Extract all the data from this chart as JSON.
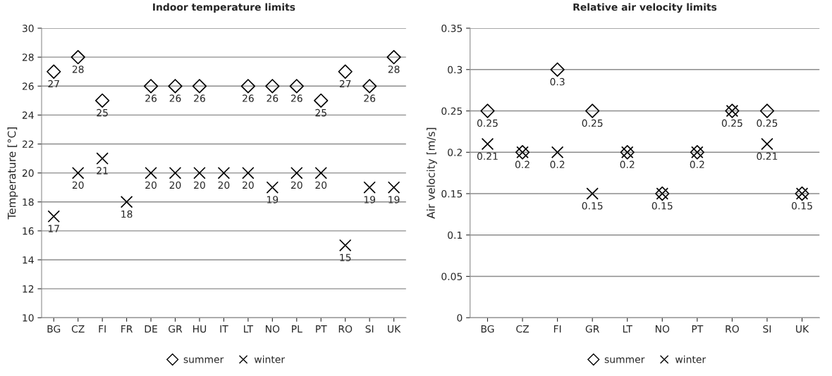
{
  "chart_data": [
    {
      "type": "scatter",
      "title": "Indoor temperature limits",
      "ylabel": "Temperature [°C]",
      "categories": [
        "BG",
        "CZ",
        "FI",
        "FR",
        "DE",
        "GR",
        "HU",
        "IT",
        "LT",
        "NO",
        "PL",
        "PT",
        "RO",
        "SI",
        "UK"
      ],
      "series": [
        {
          "name": "summer",
          "color": "#000000",
          "marker": "diamond",
          "values": [
            27,
            28,
            25,
            null,
            26,
            26,
            26,
            null,
            26,
            26,
            26,
            25,
            27,
            26,
            28
          ]
        },
        {
          "name": "winter",
          "color": "#000000",
          "marker": "cross",
          "values": [
            17,
            20,
            21,
            18,
            20,
            20,
            20,
            20,
            20,
            19,
            20,
            20,
            15,
            19,
            19
          ]
        }
      ],
      "ylim": [
        10,
        30
      ],
      "yticks": [
        10,
        12,
        14,
        16,
        18,
        20,
        22,
        24,
        26,
        28,
        30
      ],
      "grid": "y",
      "legend": "bottom",
      "data_labels": true
    },
    {
      "type": "scatter",
      "title": "Relative air velocity limits",
      "ylabel": "Air velocity [m/s]",
      "categories": [
        "BG",
        "CZ",
        "FI",
        "GR",
        "LT",
        "NO",
        "PT",
        "RO",
        "SI",
        "UK"
      ],
      "series": [
        {
          "name": "summer",
          "color": "#000000",
          "marker": "diamond",
          "values": [
            0.25,
            0.2,
            0.3,
            0.25,
            0.2,
            0.15,
            0.2,
            0.25,
            0.25,
            0.15
          ]
        },
        {
          "name": "winter",
          "color": "#000000",
          "marker": "cross",
          "values": [
            0.21,
            0.2,
            0.2,
            0.15,
            0.2,
            0.15,
            0.2,
            0.25,
            0.21,
            0.15
          ],
          "value_labels": [
            "0.21",
            null,
            "0.2",
            "0.15",
            null,
            null,
            null,
            null,
            "0.21",
            null
          ]
        }
      ],
      "ylim": [
        0,
        0.35
      ],
      "yticks": [
        0,
        0.05,
        0.1,
        0.15,
        0.2,
        0.25,
        0.3,
        0.35
      ],
      "grid": "y",
      "legend": "bottom",
      "data_labels": true
    }
  ]
}
